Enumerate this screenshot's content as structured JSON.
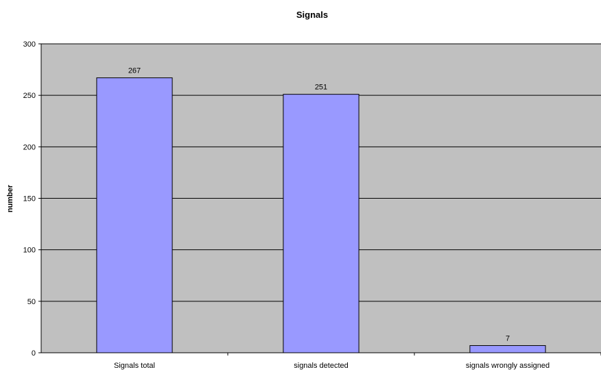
{
  "chart_data": {
    "type": "bar",
    "title": "Signals",
    "xlabel": "",
    "ylabel": "number",
    "categories": [
      "Signals total",
      "signals detected",
      "signals wrongly assigned"
    ],
    "values": [
      267,
      251,
      7
    ],
    "data_labels": [
      "267",
      "251",
      "7"
    ],
    "ylim": [
      0,
      300
    ],
    "yticks": [
      0,
      50,
      100,
      150,
      200,
      250,
      300
    ],
    "grid": true,
    "legend": "none",
    "colors": {
      "plot_background": "#c0c0c0",
      "bar_fill": "#9999ff",
      "bar_stroke": "#000000",
      "gridline": "#000000"
    }
  }
}
